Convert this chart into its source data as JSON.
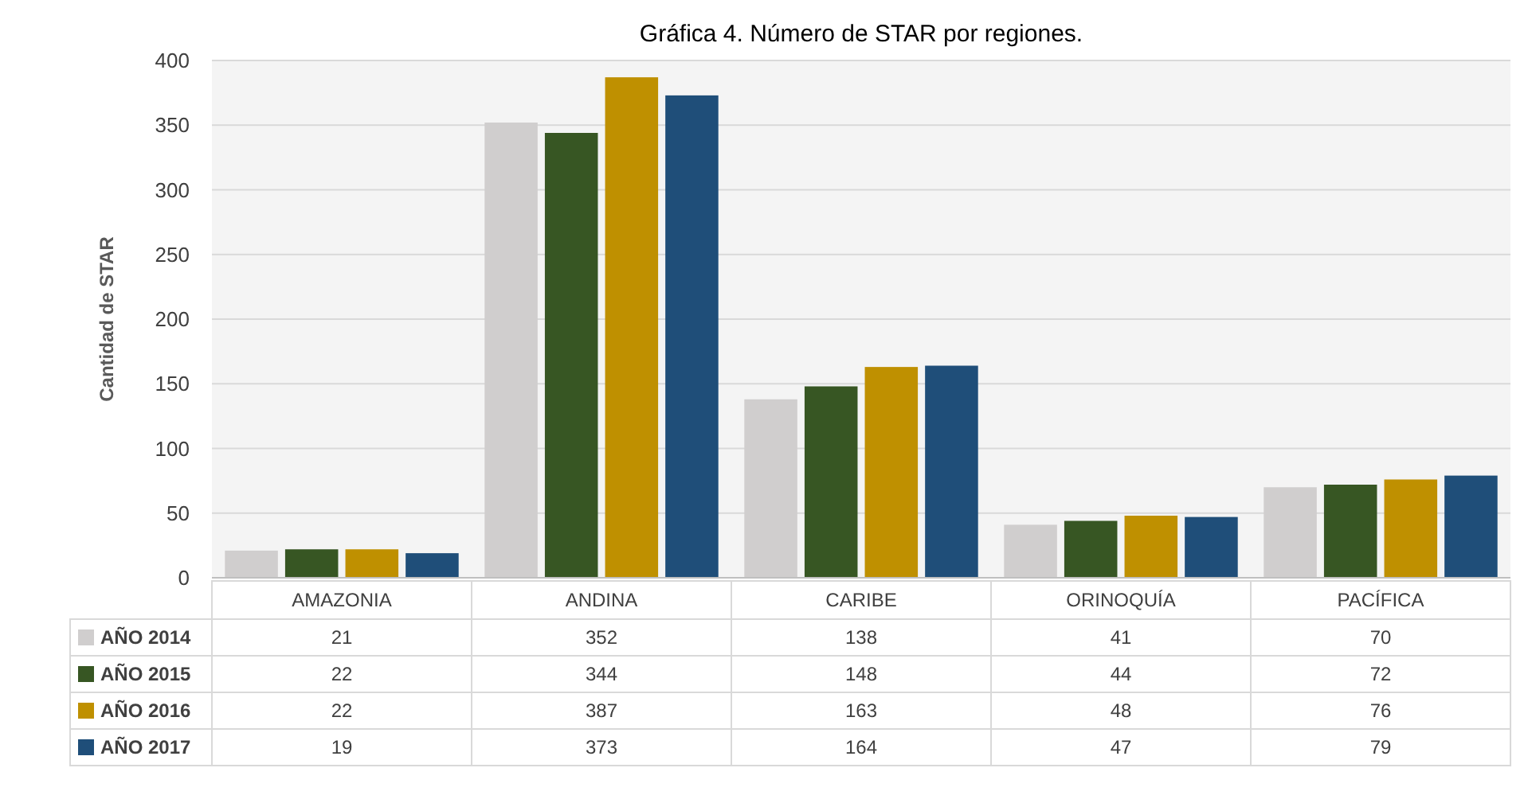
{
  "chart_data": {
    "type": "bar",
    "title": "Gráfica 4. Número de STAR por regiones.",
    "ylabel": "Cantidad de STAR",
    "categories": [
      "AMAZONIA",
      "ANDINA",
      "CARIBE",
      "ORINOQUÍA",
      "PACÍFICA"
    ],
    "series": [
      {
        "name": "AÑO 2014",
        "color": "#d0cece",
        "values": [
          21,
          352,
          138,
          41,
          70
        ]
      },
      {
        "name": "AÑO 2015",
        "color": "#375623",
        "values": [
          22,
          344,
          148,
          44,
          72
        ]
      },
      {
        "name": "AÑO 2016",
        "color": "#bf9000",
        "values": [
          22,
          387,
          163,
          48,
          76
        ]
      },
      {
        "name": "AÑO 2017",
        "color": "#1f4e79",
        "values": [
          19,
          373,
          164,
          47,
          79
        ]
      }
    ],
    "ylim": [
      0,
      400
    ],
    "yticks": [
      0,
      50,
      100,
      150,
      200,
      250,
      300,
      350,
      400
    ],
    "grid": "y",
    "legend": "bottom",
    "data_labels": true
  }
}
